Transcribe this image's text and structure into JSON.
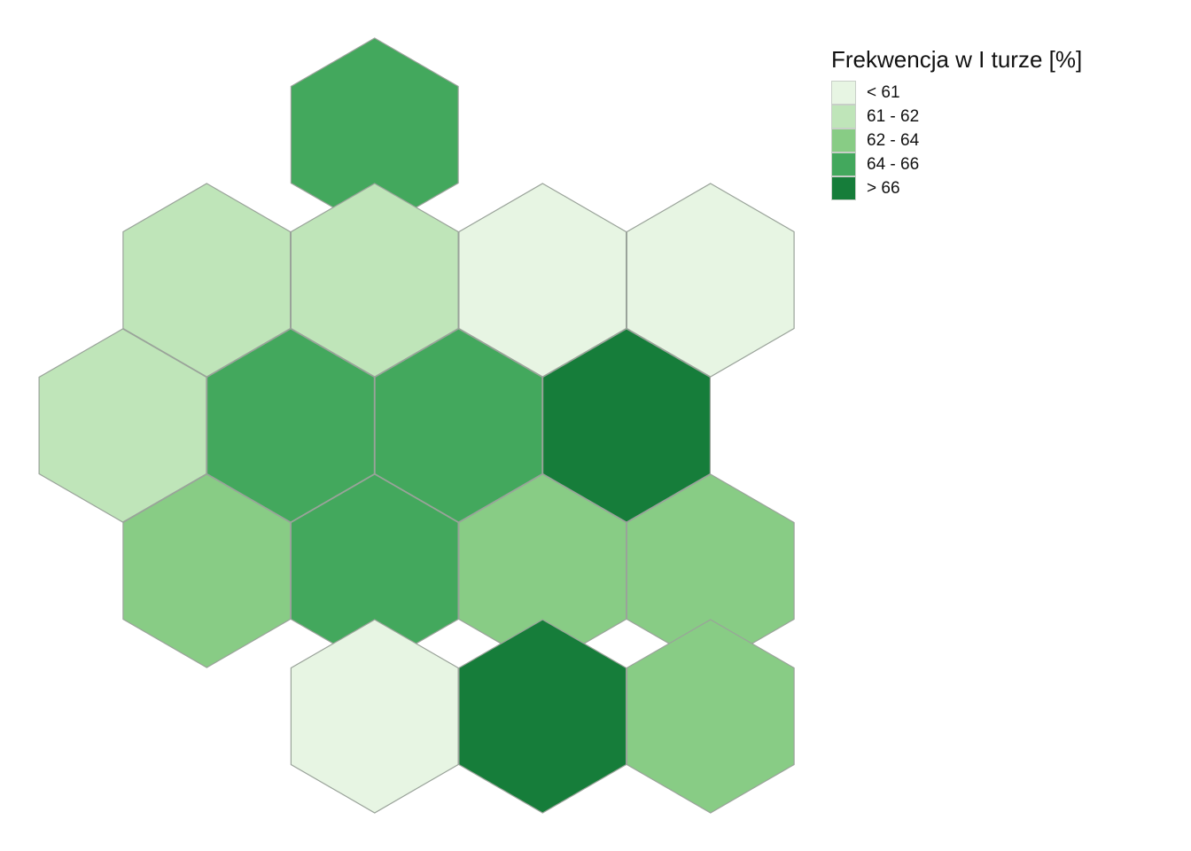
{
  "legend": {
    "title": "Frekwencja w I turze [%]",
    "classes": [
      {
        "label": "< 61",
        "color": "#e7f5e3"
      },
      {
        "label": "61 - 62",
        "color": "#bfe5b9"
      },
      {
        "label": "62 - 64",
        "color": "#88cc85"
      },
      {
        "label": "64 - 66",
        "color": "#43a85d"
      },
      {
        "label": "> 66",
        "color": "#167d3a"
      }
    ]
  },
  "hex_map": {
    "regions": [
      {
        "row": 0,
        "col": 1,
        "class": 3
      },
      {
        "row": 1,
        "col": 0,
        "class": 1
      },
      {
        "row": 1,
        "col": 1,
        "class": 1
      },
      {
        "row": 1,
        "col": 2,
        "class": 0
      },
      {
        "row": 1,
        "col": 3,
        "class": 0
      },
      {
        "row": 2,
        "col": 0,
        "class": 1
      },
      {
        "row": 2,
        "col": 1,
        "class": 3
      },
      {
        "row": 2,
        "col": 2,
        "class": 3
      },
      {
        "row": 2,
        "col": 3,
        "class": 4
      },
      {
        "row": 3,
        "col": 0,
        "class": 2
      },
      {
        "row": 3,
        "col": 1,
        "class": 3
      },
      {
        "row": 3,
        "col": 2,
        "class": 2
      },
      {
        "row": 3,
        "col": 3,
        "class": 2
      },
      {
        "row": 4,
        "col": 1,
        "class": 0
      },
      {
        "row": 4,
        "col": 2,
        "class": 4
      },
      {
        "row": 4,
        "col": 3,
        "class": 2
      }
    ]
  }
}
